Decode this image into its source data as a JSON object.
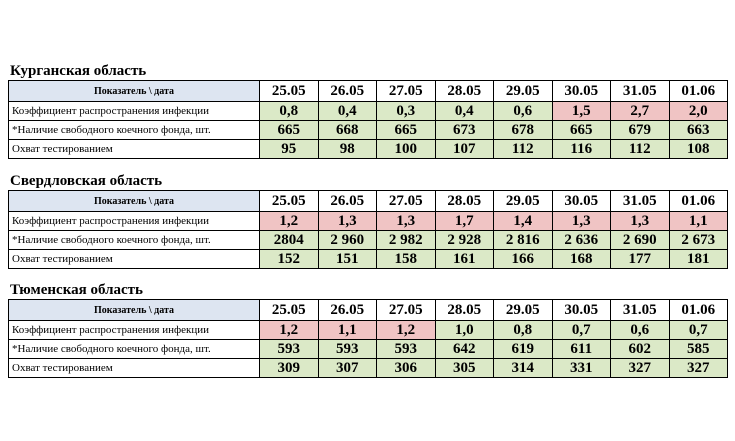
{
  "colors": {
    "header_bg": "#dde5f1",
    "good": "#dbe9c7",
    "bad": "#f0c4c4"
  },
  "header_label": "Показатель \\ дата",
  "dates": [
    "25.05",
    "26.05",
    "27.05",
    "28.05",
    "29.05",
    "30.05",
    "31.05",
    "01.06"
  ],
  "row_labels": [
    "Коэффициент распространения инфекции",
    "*Наличие свободного коечного фонда, шт.",
    "Охват тестированием"
  ],
  "regions": [
    {
      "title": "Курганская область",
      "rows": [
        {
          "values": [
            "0,8",
            "0,4",
            "0,3",
            "0,4",
            "0,6",
            "1,5",
            "2,7",
            "2,0"
          ],
          "status": [
            "g",
            "g",
            "g",
            "g",
            "g",
            "r",
            "r",
            "r"
          ]
        },
        {
          "values": [
            "665",
            "668",
            "665",
            "673",
            "678",
            "665",
            "679",
            "663"
          ],
          "status": [
            "g",
            "g",
            "g",
            "g",
            "g",
            "g",
            "g",
            "g"
          ]
        },
        {
          "values": [
            "95",
            "98",
            "100",
            "107",
            "112",
            "116",
            "112",
            "108"
          ],
          "status": [
            "g",
            "g",
            "g",
            "g",
            "g",
            "g",
            "g",
            "g"
          ]
        }
      ]
    },
    {
      "title": "Свердловская область",
      "rows": [
        {
          "values": [
            "1,2",
            "1,3",
            "1,3",
            "1,7",
            "1,4",
            "1,3",
            "1,3",
            "1,1"
          ],
          "status": [
            "r",
            "r",
            "r",
            "r",
            "r",
            "r",
            "r",
            "r"
          ]
        },
        {
          "values": [
            "2804",
            "2 960",
            "2 982",
            "2 928",
            "2 816",
            "2 636",
            "2 690",
            "2 673"
          ],
          "status": [
            "g",
            "g",
            "g",
            "g",
            "g",
            "g",
            "g",
            "g"
          ]
        },
        {
          "values": [
            "152",
            "151",
            "158",
            "161",
            "166",
            "168",
            "177",
            "181"
          ],
          "status": [
            "g",
            "g",
            "g",
            "g",
            "g",
            "g",
            "g",
            "g"
          ]
        }
      ]
    },
    {
      "title": "Тюменская область",
      "rows": [
        {
          "values": [
            "1,2",
            "1,1",
            "1,2",
            "1,0",
            "0,8",
            "0,7",
            "0,6",
            "0,7"
          ],
          "status": [
            "r",
            "r",
            "r",
            "g",
            "g",
            "g",
            "g",
            "g"
          ]
        },
        {
          "values": [
            "593",
            "593",
            "593",
            "642",
            "619",
            "611",
            "602",
            "585"
          ],
          "status": [
            "g",
            "g",
            "g",
            "g",
            "g",
            "g",
            "g",
            "g"
          ]
        },
        {
          "values": [
            "309",
            "307",
            "306",
            "305",
            "314",
            "331",
            "327",
            "327"
          ],
          "status": [
            "g",
            "g",
            "g",
            "g",
            "g",
            "g",
            "g",
            "g"
          ]
        }
      ]
    }
  ]
}
